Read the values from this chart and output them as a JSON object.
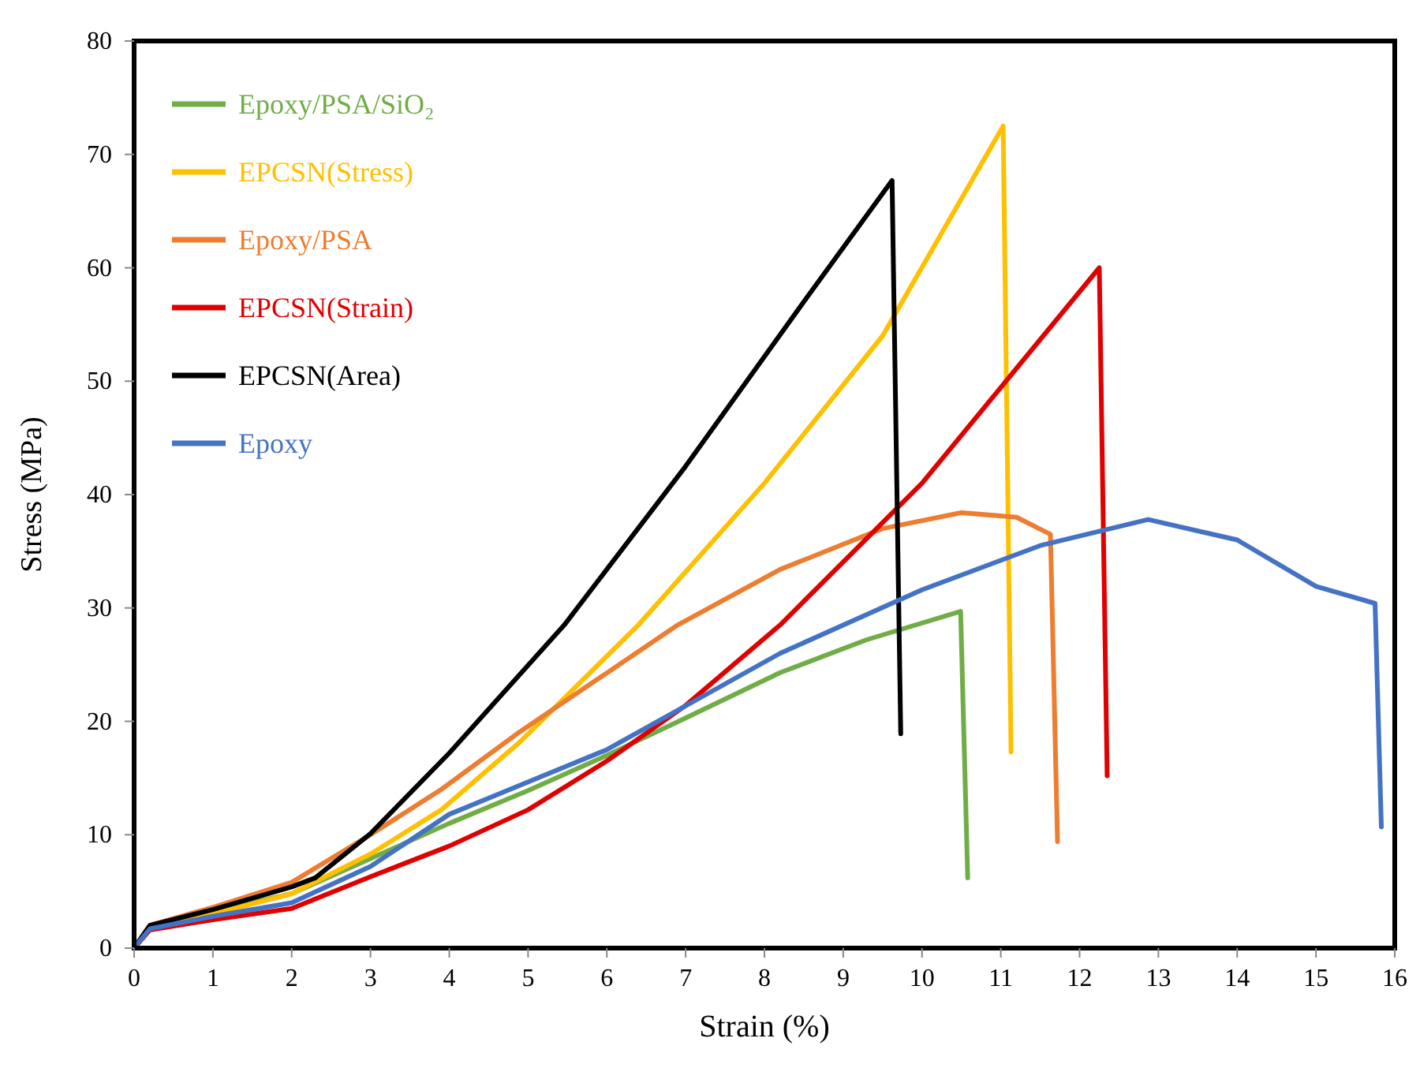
{
  "chart_data": {
    "type": "line",
    "xlabel": "Strain (%)",
    "ylabel": "Stress (MPa)",
    "xlim": [
      0,
      16
    ],
    "ylim": [
      0,
      80
    ],
    "xticks": [
      0,
      1,
      2,
      3,
      4,
      5,
      6,
      7,
      8,
      9,
      10,
      11,
      12,
      13,
      14,
      15,
      16
    ],
    "yticks": [
      0,
      10,
      20,
      30,
      40,
      50,
      60,
      70,
      80
    ],
    "grid": false,
    "legend": "top left",
    "marker": "none",
    "line_style": "solid",
    "series": [
      {
        "name": "Epoxy/PSA/SiO₂",
        "color": "#70ad47",
        "x": [
          0,
          0.2,
          1,
          2,
          3,
          4,
          5,
          6,
          7,
          8.2,
          9.3,
          10.49,
          10.58
        ],
        "values": [
          0,
          1.8,
          3.2,
          4.8,
          7.9,
          11,
          13.9,
          17,
          20.3,
          24.3,
          27.2,
          29.7,
          6.2
        ]
      },
      {
        "name": "EPCSN(Stress)",
        "color": "#ffc000",
        "x": [
          0,
          0.2,
          1,
          2,
          3,
          3.9,
          4.9,
          6.4,
          8,
          9.5,
          11.03,
          11.13
        ],
        "values": [
          0,
          1.8,
          3,
          4.8,
          8.3,
          12.2,
          18.2,
          28.5,
          41,
          54,
          72.5,
          17.3
        ]
      },
      {
        "name": "Epoxy/PSA",
        "color": "#ed7d31",
        "x": [
          0,
          0.2,
          1,
          2,
          3,
          3.9,
          4.9,
          6.9,
          8.2,
          9.5,
          10.5,
          11.2,
          11.63,
          11.72
        ],
        "values": [
          0,
          2,
          3.6,
          5.8,
          10,
          14,
          19.1,
          28.5,
          33.4,
          37,
          38.4,
          38,
          36.5,
          9.4
        ]
      },
      {
        "name": "EPCSN(Strain)",
        "color": "#e00000",
        "x": [
          0,
          0.2,
          1,
          2,
          3,
          4,
          5,
          6,
          7,
          8.2,
          10,
          12.25,
          12.35
        ],
        "values": [
          0,
          1.6,
          2.5,
          3.5,
          6.3,
          9,
          12.2,
          16.5,
          21.4,
          28.5,
          41,
          60,
          15.2
        ]
      },
      {
        "name": "EPCSN(Area)",
        "color": "#000000",
        "x": [
          0,
          0.2,
          1,
          2,
          2.3,
          3,
          4,
          5.46,
          7,
          8.5,
          9.62,
          9.73
        ],
        "values": [
          0,
          2,
          3.4,
          5.4,
          6.2,
          10.1,
          17.2,
          28.5,
          42.5,
          57,
          67.7,
          18.9
        ]
      },
      {
        "name": "Epoxy",
        "color": "#4472c4",
        "x": [
          0,
          0.2,
          1,
          2,
          3,
          4,
          6,
          8.2,
          10,
          11.5,
          12.87,
          14,
          15,
          15.75,
          15.83
        ],
        "values": [
          0,
          1.7,
          2.8,
          4,
          7.2,
          11.8,
          17.5,
          26,
          31.6,
          35.5,
          37.8,
          36,
          31.9,
          30.4,
          10.7
        ]
      }
    ]
  }
}
